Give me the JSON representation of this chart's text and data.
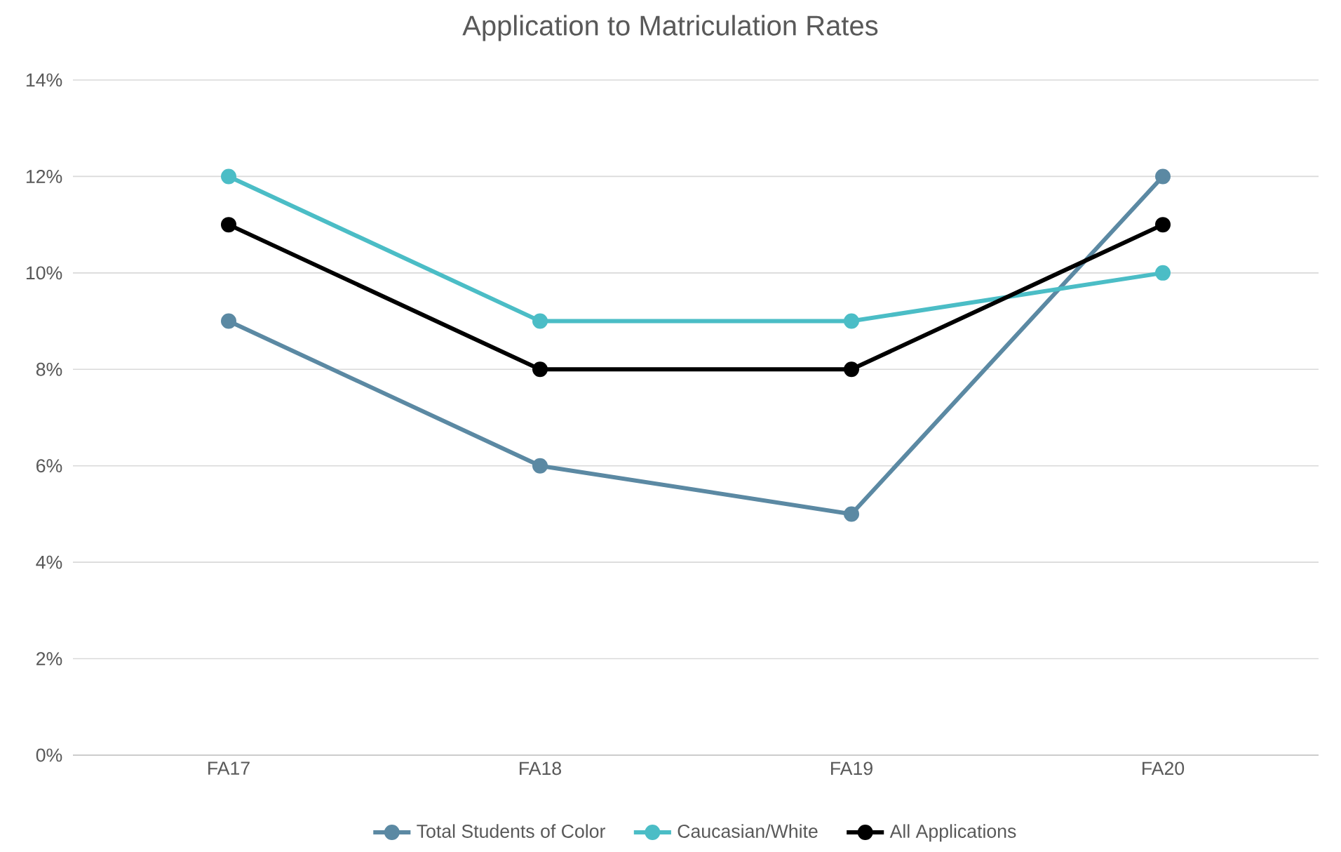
{
  "chart_data": {
    "type": "line",
    "title": "Application to Matriculation Rates",
    "categories": [
      "FA17",
      "FA18",
      "FA19",
      "FA20"
    ],
    "series": [
      {
        "name": "Total Students of Color",
        "color": "#5b89a3",
        "values": [
          9,
          6,
          5,
          12
        ]
      },
      {
        "name": "Caucasian/White",
        "color": "#4bbdc6",
        "values": [
          12,
          9,
          9,
          10
        ]
      },
      {
        "name": "All Applications",
        "color": "#000000",
        "values": [
          11,
          8,
          8,
          11
        ]
      }
    ],
    "ylim": [
      0,
      14
    ],
    "yticks": [
      {
        "value": 0,
        "label": "0%"
      },
      {
        "value": 2,
        "label": "2%"
      },
      {
        "value": 4,
        "label": "4%"
      },
      {
        "value": 6,
        "label": "6%"
      },
      {
        "value": 8,
        "label": "8%"
      },
      {
        "value": 10,
        "label": "10%"
      },
      {
        "value": 12,
        "label": "12%"
      },
      {
        "value": 14,
        "label": "14%"
      }
    ],
    "grid": "y",
    "legend": "bottom",
    "marker": "circle"
  }
}
